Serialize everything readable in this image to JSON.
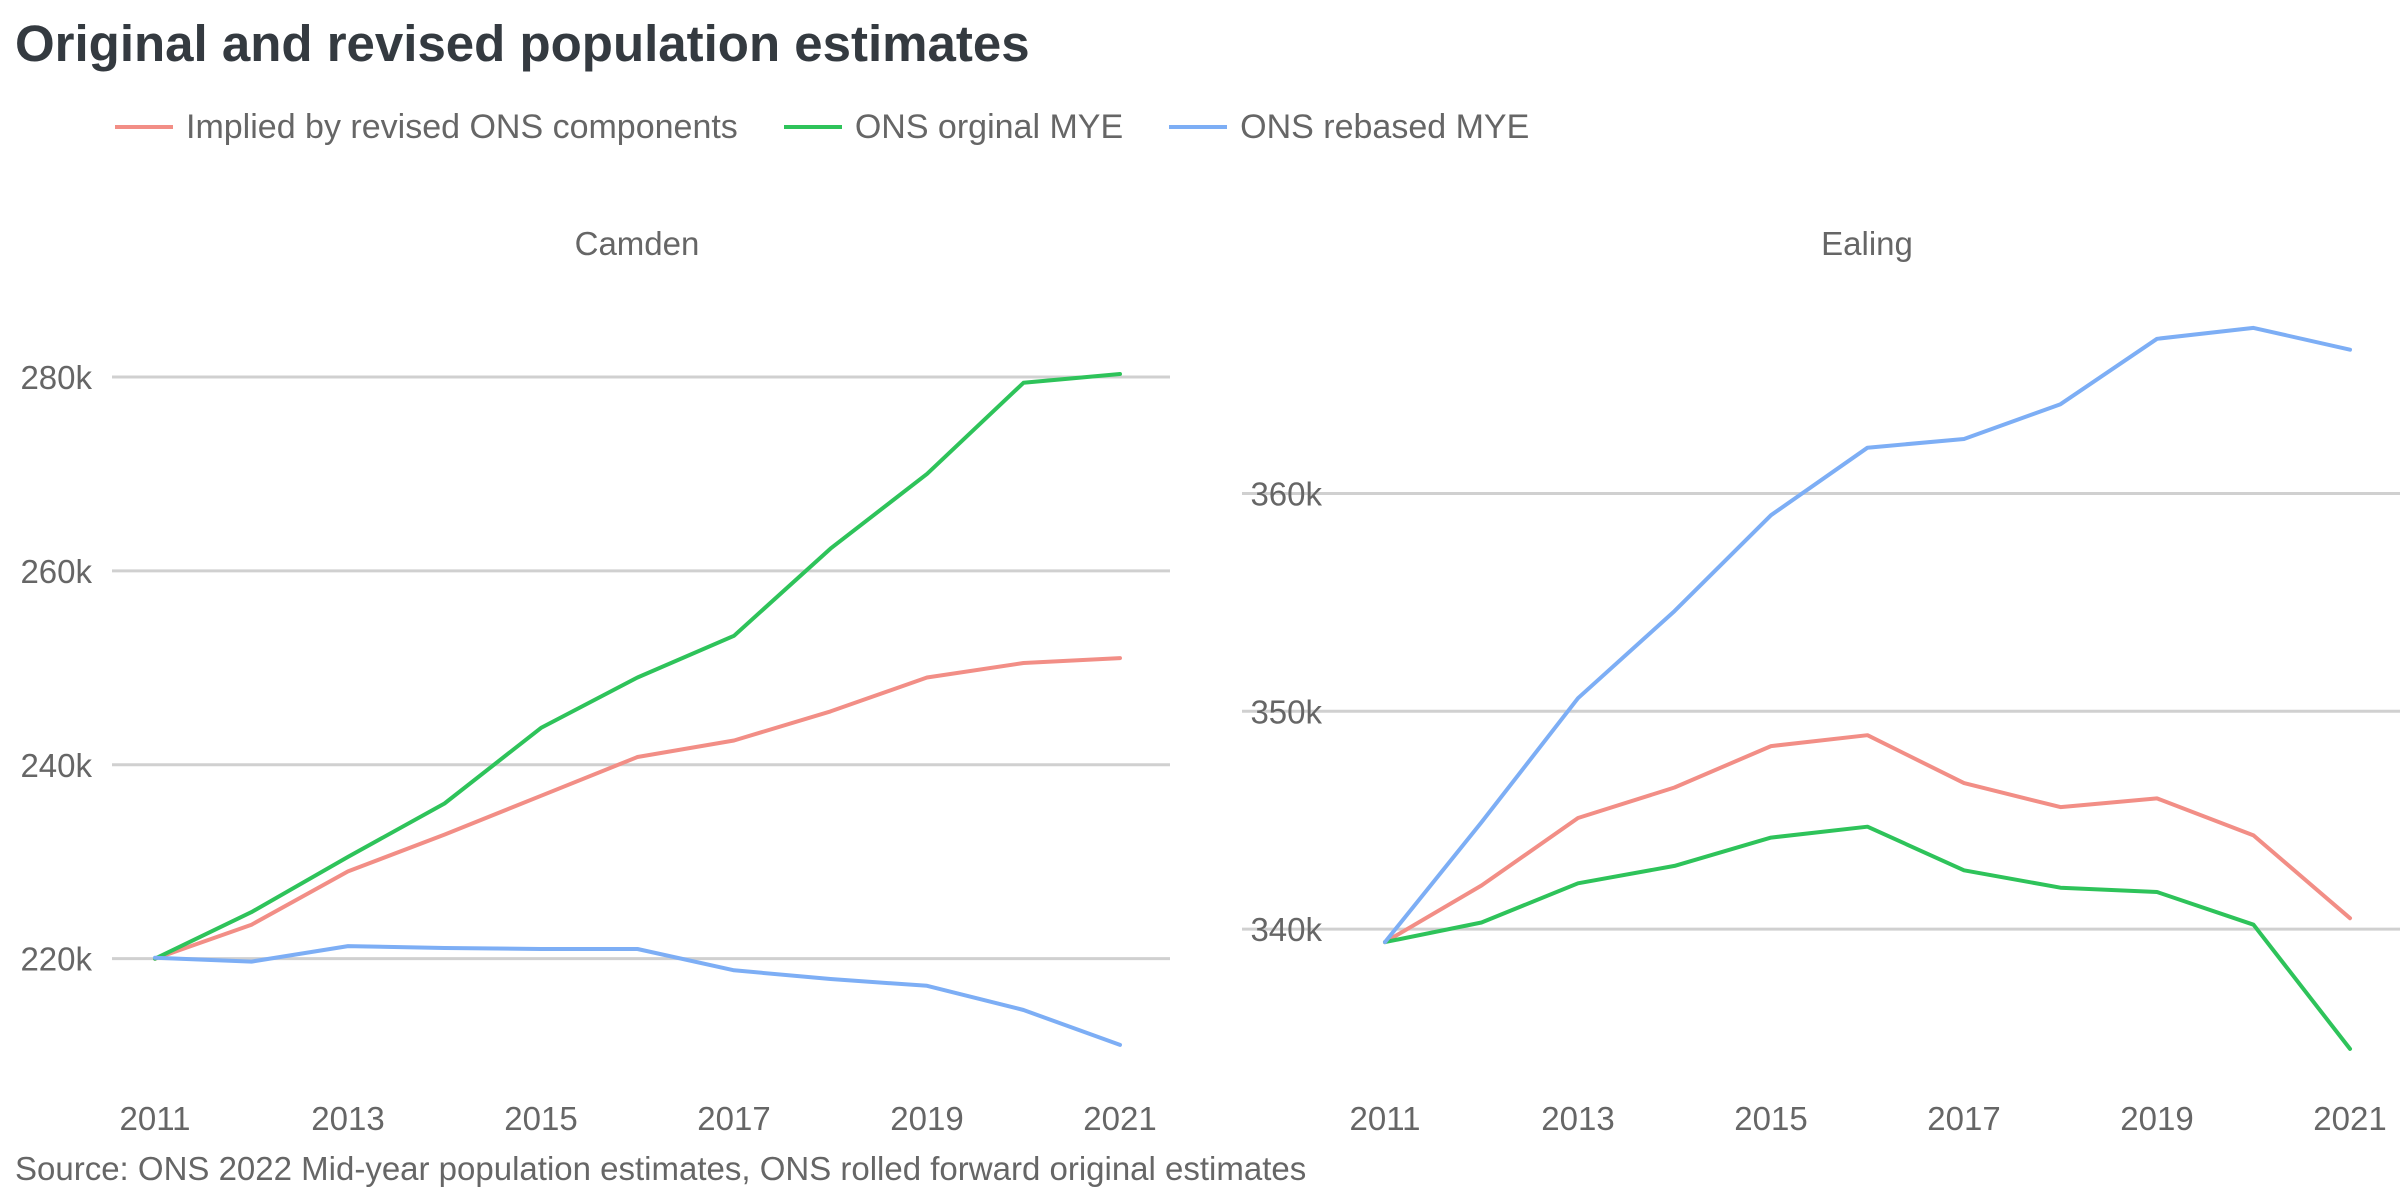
{
  "title": "Original and revised population estimates",
  "source": "Source: ONS 2022 Mid-year population estimates, ONS rolled forward original estimates",
  "legend": [
    {
      "name": "Implied by revised ONS components",
      "color": "#f28e86"
    },
    {
      "name": "ONS orginal MYE",
      "color": "#2ec35a"
    },
    {
      "name": "ONS rebased MYE",
      "color": "#7daef5"
    }
  ],
  "chart_data": [
    {
      "type": "line",
      "title": "Camden",
      "x": [
        2011,
        2012,
        2013,
        2014,
        2015,
        2016,
        2017,
        2018,
        2019,
        2020,
        2021
      ],
      "xticks": [
        2011,
        2013,
        2015,
        2017,
        2019,
        2021
      ],
      "xtick_labels": [
        "2011",
        "2013",
        "2015",
        "2017",
        "2019",
        "2021"
      ],
      "yticks": [
        220000,
        240000,
        260000,
        280000
      ],
      "ytick_labels": [
        "220k",
        "240k",
        "260k",
        "280k"
      ],
      "ylim": [
        208000,
        290000
      ],
      "grid": "horizontal",
      "series": [
        {
          "name": "Implied by revised ONS components",
          "color": "#f28e86",
          "values": [
            220000,
            223500,
            229000,
            232800,
            236800,
            240800,
            242500,
            245500,
            249000,
            250500,
            251000
          ]
        },
        {
          "name": "ONS orginal MYE",
          "color": "#2ec35a",
          "values": [
            220000,
            224800,
            230500,
            236000,
            243800,
            249000,
            253300,
            262300,
            270000,
            279400,
            280300
          ]
        },
        {
          "name": "ONS rebased MYE",
          "color": "#7daef5",
          "values": [
            220100,
            219700,
            221300,
            221100,
            221000,
            221000,
            218800,
            217900,
            217200,
            214700,
            211100
          ]
        }
      ]
    },
    {
      "type": "line",
      "title": "Ealing",
      "x": [
        2011,
        2012,
        2013,
        2014,
        2015,
        2016,
        2017,
        2018,
        2019,
        2020,
        2021
      ],
      "xticks": [
        2011,
        2013,
        2015,
        2017,
        2019,
        2021
      ],
      "xtick_labels": [
        "2011",
        "2013",
        "2015",
        "2017",
        "2019",
        "2021"
      ],
      "yticks": [
        340000,
        350000,
        360000
      ],
      "ytick_labels": [
        "340k",
        "350k",
        "360k"
      ],
      "ylim": [
        333300,
        369800
      ],
      "grid": "horizontal",
      "series": [
        {
          "name": "Implied by revised ONS components",
          "color": "#f28e86",
          "values": [
            339400,
            342000,
            345100,
            346500,
            348400,
            348900,
            346700,
            345600,
            346000,
            344300,
            340500
          ]
        },
        {
          "name": "ONS orginal MYE",
          "color": "#2ec35a",
          "values": [
            339400,
            340300,
            342100,
            342900,
            344200,
            344700,
            342700,
            341900,
            341700,
            340200,
            334500
          ]
        },
        {
          "name": "ONS rebased MYE",
          "color": "#7daef5",
          "values": [
            339400,
            344900,
            350600,
            354600,
            359000,
            362100,
            362500,
            364100,
            367100,
            367600,
            366600
          ]
        }
      ]
    }
  ]
}
